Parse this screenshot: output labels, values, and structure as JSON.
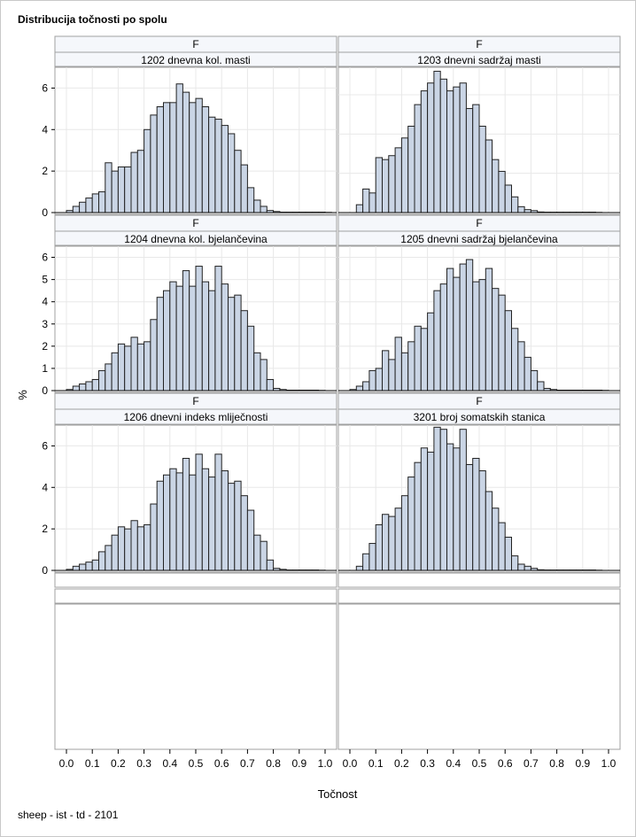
{
  "page": {
    "title": "Distribucija točnosti po spolu",
    "footnote": "sheep - ist - td - 2101"
  },
  "colors": {
    "bar_fill": "#cad5e5",
    "bar_stroke": "#222222",
    "grid": "#e8e8e8",
    "strip_fill": "#f5f7fb",
    "border": "#a0a0a0"
  },
  "chart_data": {
    "type": "bar",
    "subtype": "histogram-panel",
    "title": "Distribucija točnosti po spolu",
    "xlabel": "Točnost",
    "ylabel": "%",
    "xlim": [
      0,
      1.0
    ],
    "x_ticks": [
      "0.0",
      "0.1",
      "0.2",
      "0.3",
      "0.4",
      "0.5",
      "0.6",
      "0.7",
      "0.8",
      "0.9",
      "1.0"
    ],
    "bin_width": 0.025,
    "bin_start": 0.0,
    "grid": true,
    "group_label": "F",
    "panels": [
      {
        "label": "1202 dnevna kol. masti",
        "ylim": [
          0,
          7
        ],
        "y_ticks": [
          "0",
          "2",
          "4",
          "6"
        ],
        "values": [
          0.1,
          0.3,
          0.5,
          0.7,
          0.9,
          1.0,
          2.4,
          2.0,
          2.2,
          2.2,
          2.9,
          3.0,
          4.0,
          4.7,
          5.1,
          5.3,
          5.3,
          6.2,
          5.8,
          5.3,
          5.5,
          5.1,
          4.6,
          4.5,
          4.2,
          3.8,
          3.0,
          2.3,
          1.2,
          0.6,
          0.3,
          0.1,
          0.05,
          0.02,
          0.02,
          0.02,
          0.02,
          0.02,
          0.02,
          0.02,
          0.01
        ]
      },
      {
        "label": "1203 dnevni sadržaj masti",
        "ylim": [
          0,
          7.4
        ],
        "y_ticks": [
          "0",
          "2",
          "4",
          "6"
        ],
        "values": [
          0.0,
          0.4,
          1.2,
          1.0,
          2.8,
          2.7,
          2.9,
          3.3,
          3.8,
          4.4,
          5.5,
          6.2,
          6.6,
          7.2,
          6.8,
          6.2,
          6.4,
          6.6,
          5.3,
          5.5,
          4.4,
          3.7,
          2.7,
          2.1,
          1.4,
          0.8,
          0.3,
          0.15,
          0.1,
          0.03,
          0.02,
          0.02,
          0.02,
          0.02,
          0.02,
          0.02,
          0.02,
          0.02,
          0.01
        ]
      },
      {
        "label": "1204 dnevna kol. bjelančevina",
        "ylim": [
          0,
          6.5
        ],
        "y_ticks": [
          "0",
          "1",
          "2",
          "3",
          "4",
          "5",
          "6"
        ],
        "values": [
          0.05,
          0.2,
          0.3,
          0.4,
          0.5,
          0.9,
          1.2,
          1.7,
          2.1,
          2.0,
          2.4,
          2.1,
          2.2,
          3.2,
          4.2,
          4.5,
          4.9,
          4.7,
          5.4,
          4.7,
          5.6,
          4.9,
          4.5,
          5.6,
          4.8,
          4.2,
          4.3,
          3.6,
          2.9,
          1.7,
          1.4,
          0.5,
          0.1,
          0.05,
          0.02,
          0.02,
          0.02,
          0.02,
          0.02,
          0.01
        ]
      },
      {
        "label": "1205 dnevni sadržaj bjelančevina",
        "ylim": [
          0,
          6.5
        ],
        "y_ticks": [
          "0",
          "1",
          "2",
          "3",
          "4",
          "5",
          "6"
        ],
        "values": [
          0.05,
          0.2,
          0.4,
          0.9,
          1.0,
          1.8,
          1.4,
          2.4,
          1.7,
          2.2,
          2.9,
          2.8,
          3.5,
          4.5,
          4.8,
          5.5,
          5.1,
          5.7,
          5.9,
          4.9,
          5.0,
          5.5,
          4.6,
          4.3,
          3.6,
          2.8,
          2.2,
          1.5,
          0.9,
          0.4,
          0.1,
          0.05,
          0.02,
          0.02,
          0.02,
          0.02,
          0.02,
          0.02,
          0.02,
          0.01
        ]
      },
      {
        "label": "1206 dnevni indeks mliječnosti",
        "ylim": [
          0,
          7
        ],
        "y_ticks": [
          "0",
          "2",
          "4",
          "6"
        ],
        "values": [
          0.05,
          0.2,
          0.3,
          0.4,
          0.5,
          0.9,
          1.2,
          1.7,
          2.1,
          2.0,
          2.4,
          2.1,
          2.2,
          3.2,
          4.3,
          4.6,
          4.9,
          4.7,
          5.4,
          4.6,
          5.6,
          4.9,
          4.5,
          5.6,
          4.8,
          4.2,
          4.3,
          3.6,
          2.9,
          1.7,
          1.4,
          0.5,
          0.1,
          0.05,
          0.02,
          0.02,
          0.02,
          0.02,
          0.02,
          0.01
        ]
      },
      {
        "label": "3201 broj somatskih stanica",
        "ylim": [
          0,
          7
        ],
        "y_ticks": [
          "0",
          "2",
          "4",
          "6"
        ],
        "values": [
          0.0,
          0.2,
          0.8,
          1.3,
          2.2,
          2.7,
          2.6,
          3.0,
          3.6,
          4.5,
          5.2,
          5.9,
          5.7,
          6.9,
          6.8,
          6.1,
          5.9,
          6.8,
          5.1,
          5.4,
          4.8,
          3.8,
          3.0,
          2.3,
          1.6,
          0.7,
          0.3,
          0.2,
          0.1,
          0.03,
          0.02,
          0.02,
          0.02,
          0.02,
          0.02,
          0.02,
          0.02,
          0.02,
          0.01
        ]
      }
    ]
  }
}
